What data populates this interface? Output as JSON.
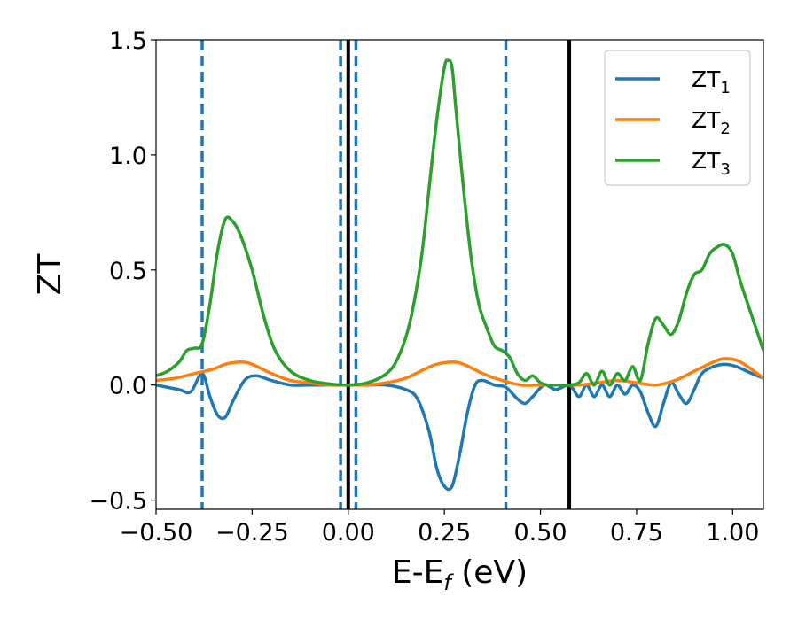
{
  "chart_data": {
    "type": "line",
    "xlabel_main": "E-E",
    "xlabel_sub": "f",
    "xlabel_unit": " (eV)",
    "ylabel": "ZT",
    "xlim": [
      -0.5,
      1.08
    ],
    "ylim": [
      -0.54,
      1.5
    ],
    "x_ticks": [
      -0.5,
      -0.25,
      0.0,
      0.25,
      0.5,
      0.75,
      1.0
    ],
    "x_tick_labels": [
      "−0.50",
      "−0.25",
      "0.00",
      "0.25",
      "0.50",
      "0.75",
      "1.00"
    ],
    "y_ticks": [
      -0.5,
      0.0,
      0.5,
      1.0,
      1.5
    ],
    "y_tick_labels": [
      "−0.5",
      "0.0",
      "0.5",
      "1.0",
      "1.5"
    ],
    "grid": false,
    "legend_position": "top-right",
    "vlines_dashed": [
      -0.38,
      -0.02,
      0.02,
      0.41
    ],
    "vlines_solid": [
      0.0,
      0.575
    ],
    "dashed_color": "#1f77b4",
    "solid_color": "#000000",
    "series": [
      {
        "name_base": "ZT",
        "name_sub": "1",
        "color": "#1f77b4",
        "x": [
          -0.5,
          -0.44,
          -0.41,
          -0.38,
          -0.36,
          -0.34,
          -0.32,
          -0.3,
          -0.27,
          -0.24,
          -0.2,
          -0.15,
          -0.1,
          -0.05,
          0.0,
          0.05,
          0.1,
          0.15,
          0.18,
          0.21,
          0.23,
          0.25,
          0.27,
          0.29,
          0.31,
          0.33,
          0.35,
          0.38,
          0.41,
          0.44,
          0.46,
          0.48,
          0.51,
          0.54,
          0.575,
          0.6,
          0.62,
          0.64,
          0.66,
          0.68,
          0.7,
          0.72,
          0.74,
          0.76,
          0.78,
          0.8,
          0.82,
          0.84,
          0.86,
          0.88,
          0.9,
          0.92,
          0.95,
          0.98,
          1.01,
          1.05,
          1.08
        ],
        "y": [
          0.0,
          -0.02,
          -0.03,
          0.05,
          -0.05,
          -0.13,
          -0.14,
          -0.07,
          0.02,
          0.04,
          0.02,
          0.0,
          0.0,
          0.0,
          0.0,
          0.0,
          0.0,
          -0.02,
          -0.06,
          -0.2,
          -0.36,
          -0.44,
          -0.44,
          -0.3,
          -0.12,
          0.0,
          0.02,
          0.0,
          -0.01,
          -0.06,
          -0.08,
          -0.05,
          0.0,
          -0.02,
          0.0,
          -0.05,
          0.0,
          -0.05,
          0.0,
          -0.05,
          0.0,
          -0.04,
          0.0,
          -0.03,
          -0.12,
          -0.18,
          -0.08,
          0.01,
          -0.04,
          -0.08,
          -0.02,
          0.05,
          0.08,
          0.09,
          0.08,
          0.05,
          0.03
        ]
      },
      {
        "name_base": "ZT",
        "name_sub": "2",
        "color": "#ff7f0e",
        "x": [
          -0.5,
          -0.45,
          -0.4,
          -0.35,
          -0.32,
          -0.28,
          -0.25,
          -0.2,
          -0.15,
          -0.1,
          -0.05,
          0.0,
          0.05,
          0.1,
          0.15,
          0.2,
          0.23,
          0.27,
          0.3,
          0.35,
          0.4,
          0.45,
          0.5,
          0.55,
          0.6,
          0.65,
          0.7,
          0.75,
          0.8,
          0.85,
          0.9,
          0.95,
          0.98,
          1.02,
          1.08
        ],
        "y": [
          0.02,
          0.03,
          0.05,
          0.07,
          0.09,
          0.1,
          0.09,
          0.05,
          0.02,
          0.01,
          0.0,
          0.0,
          0.0,
          0.01,
          0.03,
          0.07,
          0.09,
          0.1,
          0.09,
          0.05,
          0.02,
          0.0,
          0.0,
          0.0,
          0.0,
          0.01,
          0.02,
          0.01,
          0.0,
          0.02,
          0.06,
          0.1,
          0.115,
          0.1,
          0.03
        ]
      },
      {
        "name_base": "ZT",
        "name_sub": "3",
        "color": "#2ca02c",
        "x": [
          -0.5,
          -0.47,
          -0.44,
          -0.42,
          -0.4,
          -0.38,
          -0.36,
          -0.34,
          -0.32,
          -0.3,
          -0.28,
          -0.25,
          -0.22,
          -0.19,
          -0.15,
          -0.1,
          -0.05,
          0.0,
          0.05,
          0.1,
          0.13,
          0.16,
          0.19,
          0.21,
          0.23,
          0.25,
          0.26,
          0.27,
          0.28,
          0.3,
          0.32,
          0.34,
          0.36,
          0.38,
          0.4,
          0.42,
          0.44,
          0.46,
          0.48,
          0.5,
          0.52,
          0.54,
          0.575,
          0.6,
          0.62,
          0.64,
          0.66,
          0.68,
          0.7,
          0.72,
          0.74,
          0.76,
          0.78,
          0.8,
          0.82,
          0.84,
          0.86,
          0.88,
          0.9,
          0.92,
          0.94,
          0.96,
          0.98,
          1.0,
          1.02,
          1.05,
          1.08
        ],
        "y": [
          0.04,
          0.06,
          0.1,
          0.15,
          0.16,
          0.18,
          0.35,
          0.58,
          0.72,
          0.71,
          0.65,
          0.5,
          0.3,
          0.15,
          0.06,
          0.02,
          0.005,
          0.0,
          0.01,
          0.05,
          0.12,
          0.27,
          0.55,
          0.85,
          1.15,
          1.38,
          1.41,
          1.38,
          1.2,
          0.85,
          0.55,
          0.35,
          0.25,
          0.17,
          0.15,
          0.12,
          0.05,
          0.02,
          0.04,
          0.01,
          0.0,
          0.0,
          0.0,
          0.01,
          0.05,
          0.0,
          0.06,
          0.0,
          0.05,
          0.02,
          0.08,
          0.02,
          0.18,
          0.29,
          0.26,
          0.22,
          0.28,
          0.4,
          0.48,
          0.5,
          0.57,
          0.6,
          0.61,
          0.57,
          0.45,
          0.3,
          0.15
        ]
      }
    ]
  }
}
